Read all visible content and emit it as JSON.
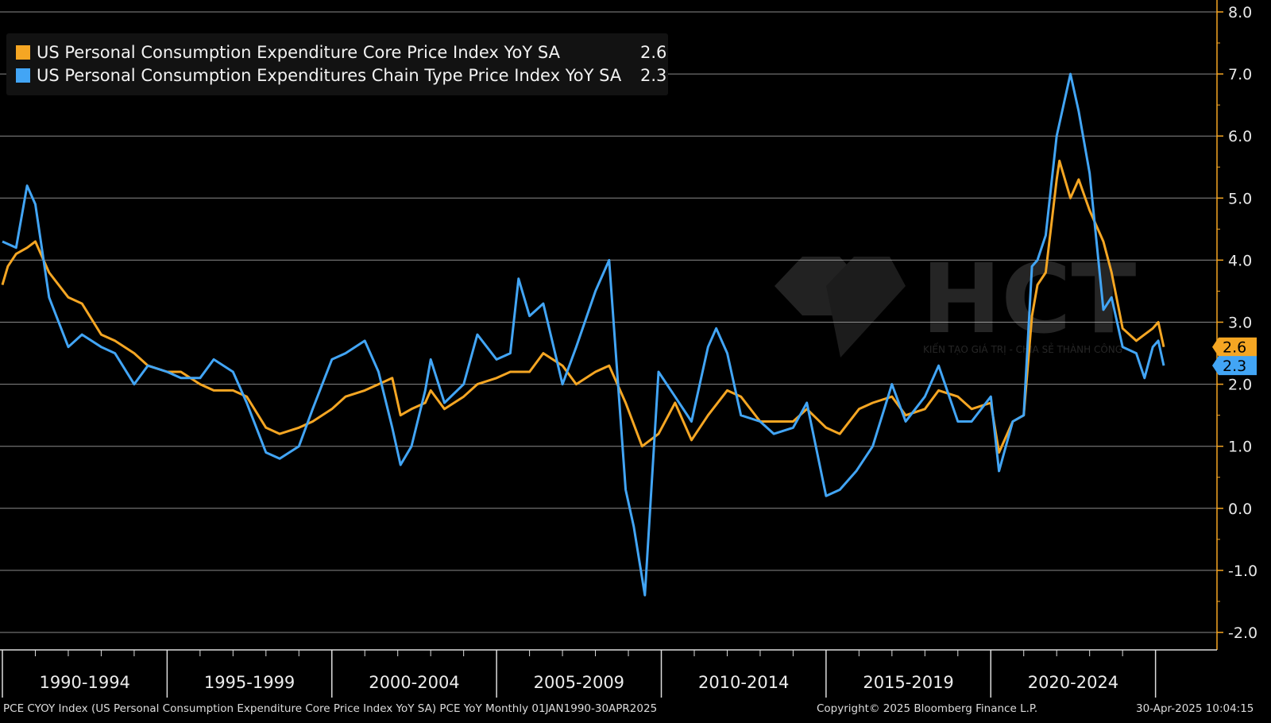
{
  "legend": [
    {
      "label": "US Personal Consumption Expenditure Core Price Index YoY SA",
      "value": "2.6"
    },
    {
      "label": "US Personal Consumption Expenditures Chain Type Price Index YoY SA",
      "value": "2.3"
    }
  ],
  "watermark": {
    "text": "HCT",
    "tagline": "KIẾN TẠO GIÁ TRỊ - CHIA SẺ THÀNH CÔNG"
  },
  "footer": {
    "left": "PCE CYOY Index (US Personal Consumption Expenditure Core Price Index YoY SA) PCE YoY  Monthly 01JAN1990-30APR2025",
    "center": "Copyright© 2025 Bloomberg Finance L.P.",
    "right": "30-Apr-2025 10:04:15"
  },
  "colors": {
    "core": "#f5a623",
    "headline": "#42a5f5",
    "background": "#000000",
    "grid": "#8a8a8a",
    "axis": "#f5a623"
  },
  "chart_data": {
    "type": "line",
    "title": "",
    "xlabel": "",
    "ylabel": "",
    "ylim": [
      -2.0,
      8.0
    ],
    "y_ticks": [
      "8.0",
      "7.0",
      "6.0",
      "5.0",
      "4.0",
      "3.0",
      "2.0",
      "1.0",
      "0.0",
      "-1.0",
      "-2.0"
    ],
    "x_range": [
      "1990-01",
      "2025-04"
    ],
    "x_categories": [
      "1990-1994",
      "1995-1999",
      "2000-2004",
      "2005-2009",
      "2010-2014",
      "2015-2019",
      "2020-2024"
    ],
    "grid": true,
    "legend_position": "top-left",
    "last_value_labels": [
      "2.6",
      "2.3"
    ],
    "series": [
      {
        "name": "US Personal Consumption Expenditure Core Price Index YoY SA",
        "color": "#f5a623",
        "points": [
          [
            "1990-01",
            3.6
          ],
          [
            "1990-03",
            3.9
          ],
          [
            "1990-06",
            4.1
          ],
          [
            "1990-10",
            4.2
          ],
          [
            "1991-01",
            4.3
          ],
          [
            "1991-06",
            3.8
          ],
          [
            "1992-01",
            3.4
          ],
          [
            "1992-06",
            3.3
          ],
          [
            "1993-01",
            2.8
          ],
          [
            "1993-06",
            2.7
          ],
          [
            "1994-01",
            2.5
          ],
          [
            "1994-06",
            2.3
          ],
          [
            "1995-01",
            2.2
          ],
          [
            "1995-06",
            2.2
          ],
          [
            "1996-01",
            2.0
          ],
          [
            "1996-06",
            1.9
          ],
          [
            "1997-01",
            1.9
          ],
          [
            "1997-06",
            1.8
          ],
          [
            "1998-01",
            1.3
          ],
          [
            "1998-06",
            1.2
          ],
          [
            "1999-01",
            1.3
          ],
          [
            "1999-06",
            1.4
          ],
          [
            "2000-01",
            1.6
          ],
          [
            "2000-06",
            1.8
          ],
          [
            "2001-01",
            1.9
          ],
          [
            "2001-06",
            2.0
          ],
          [
            "2001-11",
            2.1
          ],
          [
            "2002-02",
            1.5
          ],
          [
            "2002-06",
            1.6
          ],
          [
            "2002-11",
            1.7
          ],
          [
            "2003-01",
            1.9
          ],
          [
            "2003-06",
            1.6
          ],
          [
            "2004-01",
            1.8
          ],
          [
            "2004-06",
            2.0
          ],
          [
            "2005-01",
            2.1
          ],
          [
            "2005-06",
            2.2
          ],
          [
            "2006-01",
            2.2
          ],
          [
            "2006-06",
            2.5
          ],
          [
            "2007-01",
            2.3
          ],
          [
            "2007-06",
            2.0
          ],
          [
            "2008-01",
            2.2
          ],
          [
            "2008-06",
            2.3
          ],
          [
            "2008-12",
            1.7
          ],
          [
            "2009-06",
            1.0
          ],
          [
            "2009-12",
            1.2
          ],
          [
            "2010-06",
            1.7
          ],
          [
            "2010-12",
            1.1
          ],
          [
            "2011-06",
            1.5
          ],
          [
            "2012-01",
            1.9
          ],
          [
            "2012-06",
            1.8
          ],
          [
            "2013-01",
            1.4
          ],
          [
            "2013-06",
            1.4
          ],
          [
            "2014-01",
            1.4
          ],
          [
            "2014-06",
            1.6
          ],
          [
            "2015-01",
            1.3
          ],
          [
            "2015-06",
            1.2
          ],
          [
            "2016-01",
            1.6
          ],
          [
            "2016-06",
            1.7
          ],
          [
            "2017-01",
            1.8
          ],
          [
            "2017-06",
            1.5
          ],
          [
            "2018-01",
            1.6
          ],
          [
            "2018-06",
            1.9
          ],
          [
            "2019-01",
            1.8
          ],
          [
            "2019-06",
            1.6
          ],
          [
            "2020-01",
            1.7
          ],
          [
            "2020-04",
            0.9
          ],
          [
            "2020-09",
            1.4
          ],
          [
            "2021-01",
            1.5
          ],
          [
            "2021-04",
            3.1
          ],
          [
            "2021-06",
            3.6
          ],
          [
            "2021-09",
            3.8
          ],
          [
            "2022-01",
            5.3
          ],
          [
            "2022-02",
            5.6
          ],
          [
            "2022-06",
            5.0
          ],
          [
            "2022-09",
            5.3
          ],
          [
            "2023-01",
            4.8
          ],
          [
            "2023-06",
            4.3
          ],
          [
            "2023-09",
            3.8
          ],
          [
            "2024-01",
            2.9
          ],
          [
            "2024-06",
            2.7
          ],
          [
            "2024-09",
            2.8
          ],
          [
            "2024-12",
            2.9
          ],
          [
            "2025-02",
            3.0
          ],
          [
            "2025-04",
            2.6
          ]
        ]
      },
      {
        "name": "US Personal Consumption Expenditures Chain Type Price Index YoY SA",
        "color": "#42a5f5",
        "points": [
          [
            "1990-01",
            4.3
          ],
          [
            "1990-06",
            4.2
          ],
          [
            "1990-10",
            5.2
          ],
          [
            "1991-01",
            4.9
          ],
          [
            "1991-06",
            3.4
          ],
          [
            "1992-01",
            2.6
          ],
          [
            "1992-06",
            2.8
          ],
          [
            "1993-01",
            2.6
          ],
          [
            "1993-06",
            2.5
          ],
          [
            "1994-01",
            2.0
          ],
          [
            "1994-06",
            2.3
          ],
          [
            "1995-01",
            2.2
          ],
          [
            "1995-06",
            2.1
          ],
          [
            "1996-01",
            2.1
          ],
          [
            "1996-06",
            2.4
          ],
          [
            "1997-01",
            2.2
          ],
          [
            "1997-06",
            1.7
          ],
          [
            "1998-01",
            0.9
          ],
          [
            "1998-06",
            0.8
          ],
          [
            "1999-01",
            1.0
          ],
          [
            "1999-06",
            1.6
          ],
          [
            "2000-01",
            2.4
          ],
          [
            "2000-06",
            2.5
          ],
          [
            "2001-01",
            2.7
          ],
          [
            "2001-06",
            2.2
          ],
          [
            "2001-11",
            1.3
          ],
          [
            "2002-02",
            0.7
          ],
          [
            "2002-06",
            1.0
          ],
          [
            "2002-11",
            1.9
          ],
          [
            "2003-01",
            2.4
          ],
          [
            "2003-06",
            1.7
          ],
          [
            "2004-01",
            2.0
          ],
          [
            "2004-06",
            2.8
          ],
          [
            "2005-01",
            2.4
          ],
          [
            "2005-06",
            2.5
          ],
          [
            "2005-09",
            3.7
          ],
          [
            "2006-01",
            3.1
          ],
          [
            "2006-06",
            3.3
          ],
          [
            "2007-01",
            2.0
          ],
          [
            "2007-06",
            2.6
          ],
          [
            "2008-01",
            3.5
          ],
          [
            "2008-06",
            4.0
          ],
          [
            "2008-12",
            0.3
          ],
          [
            "2009-03",
            -0.3
          ],
          [
            "2009-07",
            -1.4
          ],
          [
            "2009-12",
            2.2
          ],
          [
            "2010-06",
            1.8
          ],
          [
            "2010-12",
            1.4
          ],
          [
            "2011-06",
            2.6
          ],
          [
            "2011-09",
            2.9
          ],
          [
            "2012-01",
            2.5
          ],
          [
            "2012-06",
            1.5
          ],
          [
            "2013-01",
            1.4
          ],
          [
            "2013-06",
            1.2
          ],
          [
            "2014-01",
            1.3
          ],
          [
            "2014-06",
            1.7
          ],
          [
            "2015-01",
            0.2
          ],
          [
            "2015-06",
            0.3
          ],
          [
            "2015-12",
            0.6
          ],
          [
            "2016-06",
            1.0
          ],
          [
            "2017-01",
            2.0
          ],
          [
            "2017-06",
            1.4
          ],
          [
            "2018-01",
            1.8
          ],
          [
            "2018-06",
            2.3
          ],
          [
            "2019-01",
            1.4
          ],
          [
            "2019-06",
            1.4
          ],
          [
            "2020-01",
            1.8
          ],
          [
            "2020-04",
            0.6
          ],
          [
            "2020-09",
            1.4
          ],
          [
            "2021-01",
            1.5
          ],
          [
            "2021-04",
            3.9
          ],
          [
            "2021-06",
            4.0
          ],
          [
            "2021-09",
            4.4
          ],
          [
            "2022-01",
            6.0
          ],
          [
            "2022-06",
            7.0
          ],
          [
            "2022-09",
            6.4
          ],
          [
            "2023-01",
            5.4
          ],
          [
            "2023-06",
            3.2
          ],
          [
            "2023-09",
            3.4
          ],
          [
            "2024-01",
            2.6
          ],
          [
            "2024-06",
            2.5
          ],
          [
            "2024-09",
            2.1
          ],
          [
            "2024-12",
            2.6
          ],
          [
            "2025-02",
            2.7
          ],
          [
            "2025-04",
            2.3
          ]
        ]
      }
    ]
  }
}
